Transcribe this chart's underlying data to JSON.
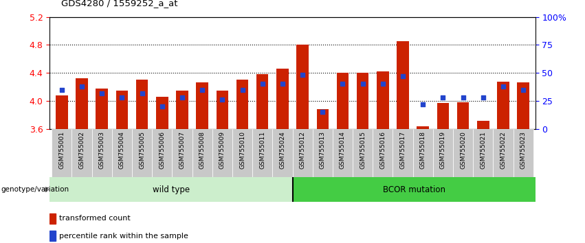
{
  "title": "GDS4280 / 1559252_a_at",
  "samples": [
    "GSM755001",
    "GSM755002",
    "GSM755003",
    "GSM755004",
    "GSM755005",
    "GSM755006",
    "GSM755007",
    "GSM755008",
    "GSM755009",
    "GSM755010",
    "GSM755011",
    "GSM755024",
    "GSM755012",
    "GSM755013",
    "GSM755014",
    "GSM755015",
    "GSM755016",
    "GSM755017",
    "GSM755018",
    "GSM755019",
    "GSM755020",
    "GSM755021",
    "GSM755022",
    "GSM755023"
  ],
  "transformed_count": [
    4.08,
    4.32,
    4.18,
    4.15,
    4.3,
    4.06,
    4.15,
    4.26,
    4.15,
    4.3,
    4.38,
    4.46,
    4.8,
    3.88,
    4.4,
    4.4,
    4.42,
    4.85,
    3.64,
    3.97,
    3.98,
    3.71,
    4.27,
    4.26
  ],
  "percentile_rank": [
    35,
    38,
    32,
    28,
    32,
    20,
    28,
    35,
    26,
    35,
    40,
    40,
    48,
    15,
    40,
    40,
    40,
    47,
    22,
    28,
    28,
    28,
    38,
    35
  ],
  "wild_type_count": 12,
  "ylim_left": [
    3.6,
    5.2
  ],
  "ylim_right": [
    0,
    100
  ],
  "yticks_left": [
    3.6,
    4.0,
    4.4,
    4.8,
    5.2
  ],
  "yticks_right": [
    0,
    25,
    50,
    75,
    100
  ],
  "ytick_labels_right": [
    "0",
    "25",
    "50",
    "75",
    "100%"
  ],
  "bar_color": "#CC2200",
  "dot_color": "#2244CC",
  "wild_type_bg": "#CCEECC",
  "bcor_bg": "#44CC44",
  "tick_bg": "#C8C8C8",
  "legend_red_label": "transformed count",
  "legend_blue_label": "percentile rank within the sample",
  "group_label": "genotype/variation",
  "wild_type_label": "wild type",
  "bcor_label": "BCOR mutation"
}
